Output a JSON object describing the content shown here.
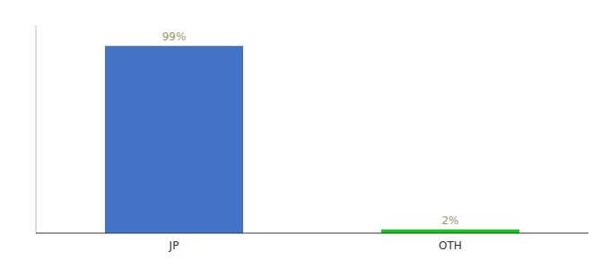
{
  "chart_data": {
    "type": "bar",
    "categories": [
      "JP",
      "OTH"
    ],
    "values": [
      99,
      2
    ],
    "value_labels": [
      "99%",
      "2%"
    ],
    "colors": [
      "#4472C4",
      "#21C228"
    ],
    "ylim": [
      0,
      110
    ],
    "data_labels": true,
    "tick_labels": "x"
  }
}
